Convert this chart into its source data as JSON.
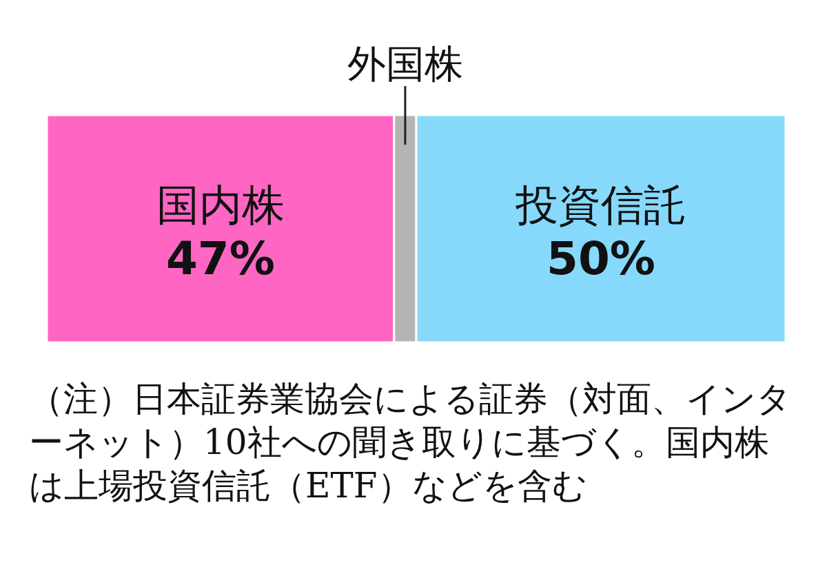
{
  "chart_data": {
    "type": "bar",
    "orientation": "horizontal",
    "stacked": true,
    "categories": [
      null
    ],
    "series": [
      {
        "name": "国内株",
        "color": "#ff66c4",
        "values": [
          47
        ],
        "value_labels": [
          "47%"
        ]
      },
      {
        "name": "外国株",
        "color": "#b4b4b4",
        "values": [
          3
        ],
        "value_labels": [
          null
        ]
      },
      {
        "name": "投資信託",
        "color": "#86d9fb",
        "values": [
          50
        ],
        "value_labels": [
          "50%"
        ]
      }
    ],
    "annotations": [
      "（注）日本証券業協会による証券（対面、インターネット）10社への聞き取りに基づく。国内株は上場投資信託（ETF）などを含む"
    ]
  }
}
